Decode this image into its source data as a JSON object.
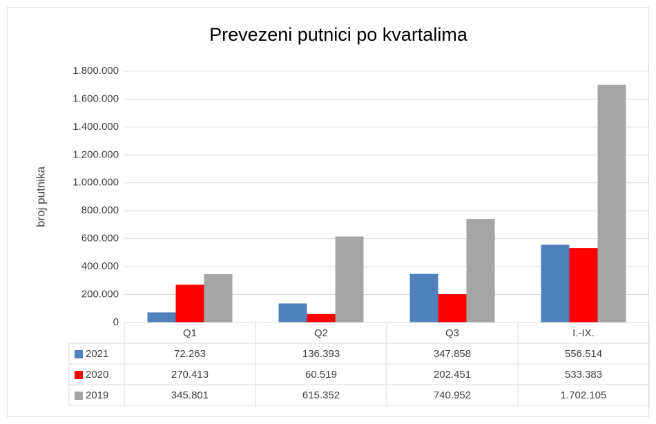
{
  "chart_data": {
    "type": "bar",
    "title": "Prevezeni putnici po kvartalima",
    "y_label": "broj putnika",
    "categories": [
      "Q1",
      "Q2",
      "Q3",
      "I.-IX."
    ],
    "series": [
      {
        "name": "2021",
        "color": "#4f81bd",
        "values": [
          72263,
          136393,
          347858,
          556514
        ],
        "value_labels": [
          "72.263",
          "136.393",
          "347.858",
          "556.514"
        ]
      },
      {
        "name": "2020",
        "color": "#ff0000",
        "values": [
          270413,
          60519,
          202451,
          533383
        ],
        "value_labels": [
          "270.413",
          "60.519",
          "202.451",
          "533.383"
        ]
      },
      {
        "name": "2019",
        "color": "#a5a5a5",
        "values": [
          345801,
          615352,
          740952,
          1702105
        ],
        "value_labels": [
          "345.801",
          "615.352",
          "740.952",
          "1.702.105"
        ]
      }
    ],
    "ylim": [
      0,
      1800000
    ],
    "yticks": [
      0,
      {
        "value": 200000,
        "label": "200.000"
      },
      {
        "value": 400000,
        "label": "400.000"
      },
      {
        "value": 600000,
        "label": "600.000"
      },
      {
        "value": 800000,
        "label": "800.000"
      },
      {
        "value": 1000000,
        "label": "1.000.000"
      },
      {
        "value": 1200000,
        "label": "1.200.000"
      },
      {
        "value": 1400000,
        "label": "1.400.000"
      },
      {
        "value": 1600000,
        "label": "1.600.000"
      },
      {
        "value": 1800000,
        "label": "1.800.000"
      }
    ],
    "grid": true
  }
}
